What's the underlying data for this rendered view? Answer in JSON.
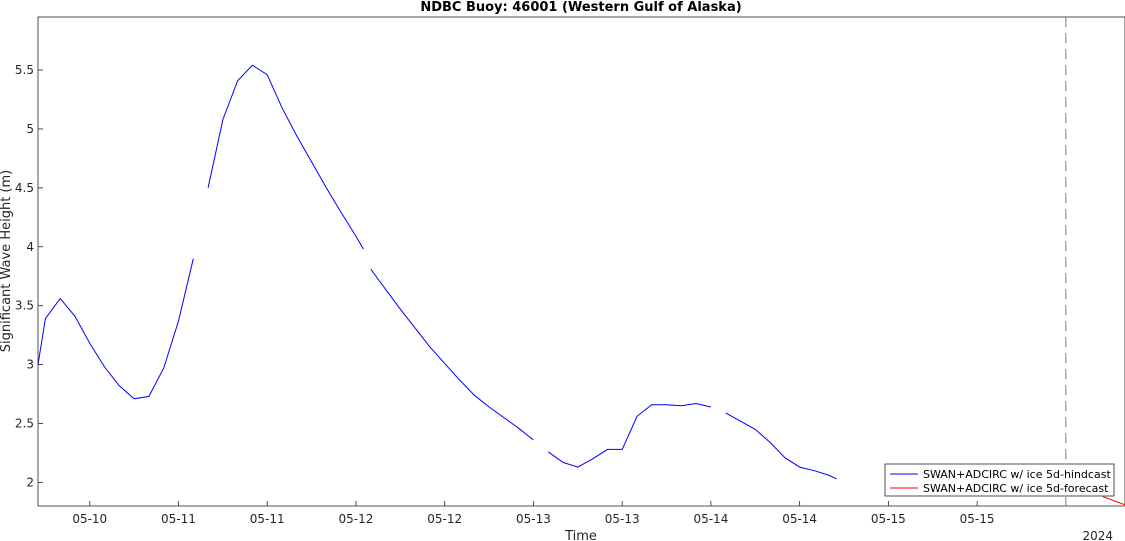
{
  "chart_data": {
    "type": "line",
    "title": "NDBC Buoy: 46001 (Western Gulf of Alaska)",
    "xlabel": "Time",
    "ylabel": "Significant Wave Height (m)",
    "x_year_label": "2024",
    "ylim": [
      1.8,
      5.95
    ],
    "yticks": [
      2,
      2.5,
      3,
      3.5,
      4,
      4.5,
      5,
      5.5
    ],
    "ytick_labels": [
      "2",
      "2.5",
      "3",
      "3.5",
      "4",
      "4.5",
      "5",
      "5.5"
    ],
    "xlim": [
      "2024-05-09 17:00",
      "2024-05-15 20:00"
    ],
    "xticks": [
      "2024-05-10 00:00",
      "2024-05-10 12:00",
      "2024-05-11 00:00",
      "2024-05-11 12:00",
      "2024-05-12 00:00",
      "2024-05-12 12:00",
      "2024-05-13 00:00",
      "2024-05-13 12:00",
      "2024-05-14 00:00",
      "2024-05-14 12:00",
      "2024-05-15 00:00"
    ],
    "xtick_labels": [
      "05-10",
      "05-11",
      "05-11",
      "05-12",
      "05-12",
      "05-13",
      "05-13",
      "05-14",
      "05-14",
      "05-15",
      "05-15"
    ],
    "vline": "2024-05-15 12:00",
    "grid": false,
    "legend_position": "bottom-right",
    "series": [
      {
        "name": "SWAN+ADCIRC w/ ice 5d-hindcast",
        "color": "#0000ff",
        "segments": [
          [
            [
              "2024-05-09 17:00",
              3.0
            ],
            [
              "2024-05-09 18:00",
              3.39
            ],
            [
              "2024-05-09 20:00",
              3.56
            ],
            [
              "2024-05-09 22:00",
              3.41
            ],
            [
              "2024-05-10 00:00",
              3.18
            ],
            [
              "2024-05-10 02:00",
              2.98
            ],
            [
              "2024-05-10 04:00",
              2.82
            ],
            [
              "2024-05-10 06:00",
              2.71
            ],
            [
              "2024-05-10 08:00",
              2.73
            ],
            [
              "2024-05-10 10:00",
              2.97
            ],
            [
              "2024-05-10 12:00",
              3.37
            ],
            [
              "2024-05-10 14:00",
              3.9
            ]
          ],
          [
            [
              "2024-05-10 16:00",
              4.5
            ],
            [
              "2024-05-10 18:00",
              5.08
            ],
            [
              "2024-05-10 20:00",
              5.41
            ],
            [
              "2024-05-10 22:00",
              5.54
            ],
            [
              "2024-05-11 00:00",
              5.46
            ],
            [
              "2024-05-11 02:00",
              5.18
            ],
            [
              "2024-05-11 04:00",
              4.94
            ],
            [
              "2024-05-11 06:00",
              4.72
            ],
            [
              "2024-05-11 08:00",
              4.5
            ],
            [
              "2024-05-11 10:00",
              4.29
            ],
            [
              "2024-05-11 12:00",
              4.09
            ],
            [
              "2024-05-11 13:00",
              3.98
            ]
          ],
          [
            [
              "2024-05-11 14:00",
              3.81
            ],
            [
              "2024-05-11 16:00",
              3.64
            ],
            [
              "2024-05-11 18:00",
              3.47
            ],
            [
              "2024-05-11 20:00",
              3.31
            ],
            [
              "2024-05-11 22:00",
              3.15
            ],
            [
              "2024-05-12 00:00",
              3.01
            ],
            [
              "2024-05-12 02:00",
              2.87
            ],
            [
              "2024-05-12 04:00",
              2.74
            ],
            [
              "2024-05-12 06:00",
              2.64
            ],
            [
              "2024-05-12 08:00",
              2.55
            ],
            [
              "2024-05-12 10:00",
              2.46
            ],
            [
              "2024-05-12 12:00",
              2.36
            ]
          ],
          [
            [
              "2024-05-12 14:00",
              2.26
            ],
            [
              "2024-05-12 16:00",
              2.17
            ],
            [
              "2024-05-12 18:00",
              2.13
            ],
            [
              "2024-05-12 20:00",
              2.2
            ],
            [
              "2024-05-12 22:00",
              2.28
            ],
            [
              "2024-05-13 00:00",
              2.28
            ],
            [
              "2024-05-13 02:00",
              2.56
            ],
            [
              "2024-05-13 04:00",
              2.66
            ],
            [
              "2024-05-13 06:00",
              2.66
            ],
            [
              "2024-05-13 08:00",
              2.65
            ],
            [
              "2024-05-13 10:00",
              2.67
            ],
            [
              "2024-05-13 12:00",
              2.64
            ]
          ],
          [
            [
              "2024-05-13 14:00",
              2.59
            ],
            [
              "2024-05-13 16:00",
              2.52
            ],
            [
              "2024-05-13 18:00",
              2.45
            ],
            [
              "2024-05-13 20:00",
              2.34
            ],
            [
              "2024-05-13 22:00",
              2.21
            ],
            [
              "2024-05-14 00:00",
              2.13
            ],
            [
              "2024-05-14 02:00",
              2.1
            ],
            [
              "2024-05-14 04:00",
              2.06
            ],
            [
              "2024-05-14 05:00",
              2.03
            ]
          ]
        ]
      },
      {
        "name": "SWAN+ADCIRC w/ ice 5d-forecast",
        "color": "#ff0000",
        "segments": [
          [
            [
              "2024-05-15 17:00",
              1.88
            ],
            [
              "2024-05-15 20:00",
              1.81
            ]
          ]
        ]
      }
    ]
  }
}
